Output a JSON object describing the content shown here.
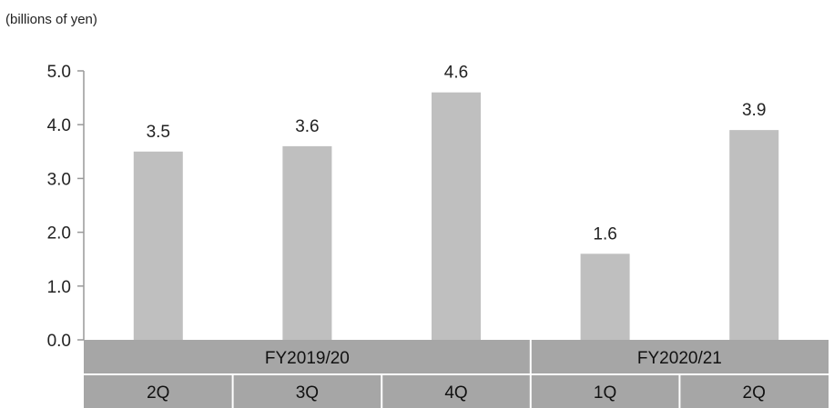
{
  "chart_data": {
    "type": "bar",
    "unit_label": "(billions of yen)",
    "title": "",
    "xlabel": "",
    "ylabel": "",
    "categories": [
      "2Q",
      "3Q",
      "4Q",
      "1Q",
      "2Q"
    ],
    "groups": [
      {
        "label": "FY2019/20",
        "span": 3
      },
      {
        "label": "FY2020/21",
        "span": 2
      }
    ],
    "values": [
      3.5,
      3.6,
      4.6,
      1.6,
      3.9
    ],
    "data_labels": [
      "3.5",
      "3.6",
      "4.6",
      "1.6",
      "3.9"
    ],
    "ylim": [
      0,
      5
    ],
    "yticks": [
      "0.0",
      "1.0",
      "2.0",
      "3.0",
      "4.0",
      "5.0"
    ],
    "grid": false,
    "legend": "none",
    "colors": {
      "bar": "#bfbfbf",
      "group_row": "#a6a6a6",
      "category_row": "#a6a6a6",
      "axis": "#999999",
      "cell_divider": "#ffffff"
    }
  }
}
